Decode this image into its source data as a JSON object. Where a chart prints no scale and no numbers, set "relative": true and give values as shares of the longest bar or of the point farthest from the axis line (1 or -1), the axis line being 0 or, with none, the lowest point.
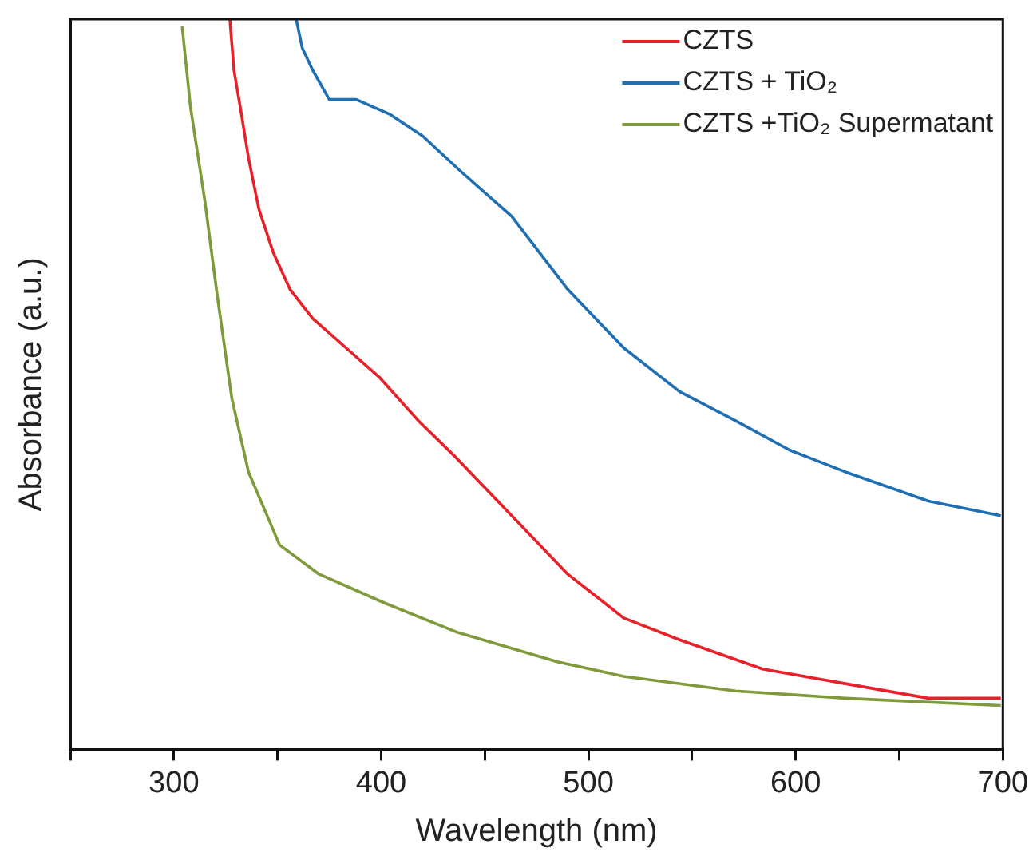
{
  "chart_data": {
    "type": "line",
    "xlabel": "Wavelength (nm)",
    "ylabel": "Absorbance (a.u.)",
    "relative": true,
    "legend": "top right",
    "xlim": [
      250,
      700
    ],
    "xticks": [
      {
        "value": 250,
        "label": null
      },
      300,
      {
        "value": 350,
        "label": null
      },
      400,
      {
        "value": 450,
        "label": null
      },
      500,
      {
        "value": 550,
        "label": null
      },
      600,
      {
        "value": 650,
        "label": null
      },
      700
    ],
    "series": [
      {
        "name": "CZTS",
        "color": "#e8202a",
        "x": [
          327,
          329,
          332,
          336,
          341,
          348,
          356,
          367,
          383,
          399,
          418,
          436,
          463,
          490,
          517,
          544,
          584,
          624,
          664,
          699
        ],
        "values": [
          1.0,
          0.93,
          0.88,
          0.81,
          0.74,
          0.68,
          0.63,
          0.59,
          0.55,
          0.51,
          0.45,
          0.4,
          0.32,
          0.24,
          0.18,
          0.15,
          0.11,
          0.09,
          0.07,
          0.07
        ]
      },
      {
        "name": "CZTS + TiO₂",
        "color": "#1f6fb5",
        "x": [
          359,
          362,
          367,
          375,
          388,
          404,
          420,
          439,
          463,
          490,
          517,
          544,
          571,
          597,
          624,
          664,
          699
        ],
        "values": [
          1.0,
          0.96,
          0.93,
          0.89,
          0.89,
          0.87,
          0.84,
          0.79,
          0.73,
          0.63,
          0.55,
          0.49,
          0.45,
          0.41,
          0.38,
          0.34,
          0.32
        ]
      },
      {
        "name": "CZTS +TiO₂ Supermatant",
        "color": "#7f9a3a",
        "x": [
          304,
          308,
          315,
          321,
          328,
          336,
          351,
          370,
          402,
          437,
          485,
          517,
          571,
          624,
          699
        ],
        "values": [
          0.99,
          0.88,
          0.75,
          0.62,
          0.48,
          0.38,
          0.28,
          0.24,
          0.2,
          0.16,
          0.12,
          0.1,
          0.08,
          0.07,
          0.06
        ]
      }
    ]
  }
}
